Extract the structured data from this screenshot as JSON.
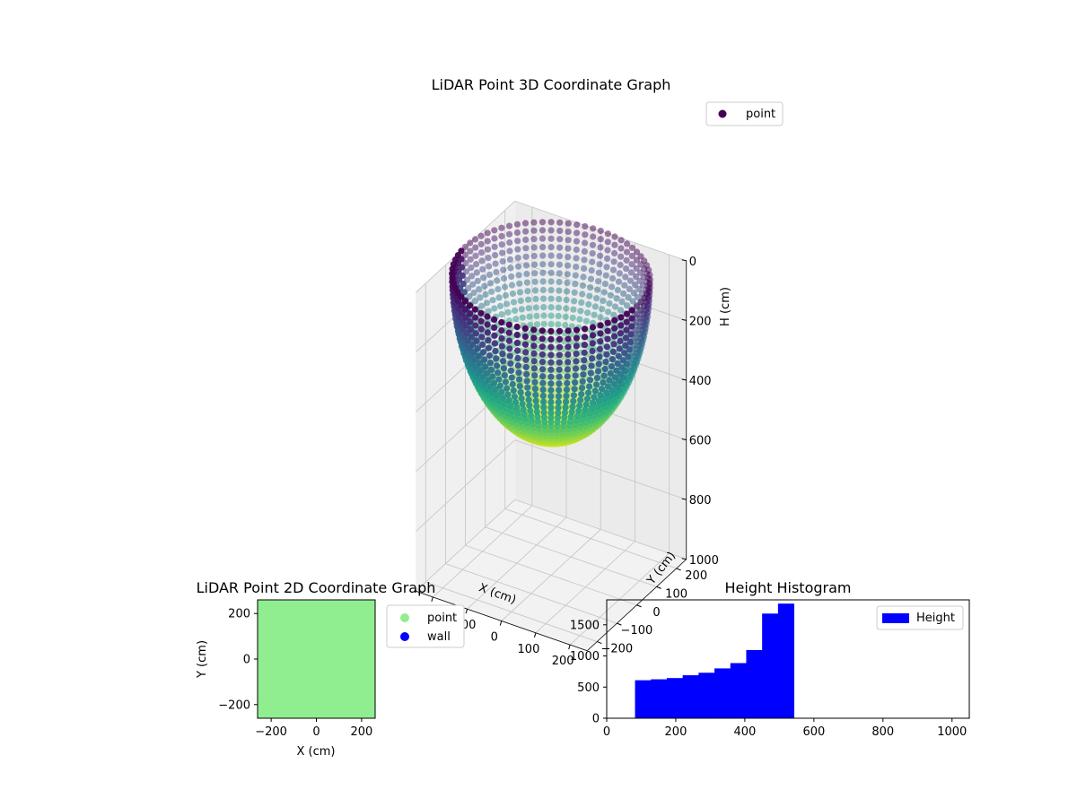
{
  "chart_data": [
    {
      "type": "scatter3d",
      "title": "LiDAR Point 3D Coordinate Graph",
      "xlabel": "X (cm)",
      "ylabel": "Y (cm)",
      "zlabel": "H (cm)",
      "xlim": [
        -250,
        250
      ],
      "ylim": [
        -250,
        250
      ],
      "zlim": [
        1000,
        0
      ],
      "xticks": [
        "−200",
        "−100",
        "0",
        "100",
        "200"
      ],
      "yticks": [
        "−200",
        "−100",
        "0",
        "100",
        "200"
      ],
      "zticks": [
        "0",
        "200",
        "400",
        "600",
        "800",
        "1000"
      ],
      "legend": [
        "point"
      ],
      "legend_loc": "upper right",
      "shape": "hemispherical bowl",
      "bowl_radius": 250,
      "bowl_depth": 530,
      "colormap": "viridis",
      "grid": true
    },
    {
      "type": "scatter",
      "title": "LiDAR Point 2D Coordinate Graph",
      "xlabel": "X (cm)",
      "ylabel": "Y (cm)",
      "xlim": [
        -260,
        260
      ],
      "ylim": [
        -260,
        260
      ],
      "xticks": [
        "−200",
        "0",
        "200"
      ],
      "yticks": [
        "−200",
        "0",
        "200"
      ],
      "fill_color": "#90ee90",
      "series": [
        {
          "name": "point",
          "color": "#90ee90"
        },
        {
          "name": "wall",
          "color": "#0000ff"
        }
      ],
      "legend_loc": "right outside"
    },
    {
      "type": "bar",
      "title": "Height Histogram",
      "legend": [
        "Height"
      ],
      "legend_loc": "upper right",
      "color": "#0000ff",
      "xlim": [
        0,
        1050
      ],
      "ylim": [
        0,
        1900
      ],
      "xticks": [
        "0",
        "200",
        "400",
        "600",
        "800",
        "1000"
      ],
      "yticks": [
        "0",
        "500",
        "1000",
        "1500"
      ],
      "bin_edges": [
        82,
        128,
        174,
        220,
        266,
        312,
        358,
        404,
        450,
        496,
        542
      ],
      "values": [
        610,
        625,
        645,
        690,
        730,
        800,
        885,
        1095,
        1680,
        1840
      ]
    }
  ]
}
